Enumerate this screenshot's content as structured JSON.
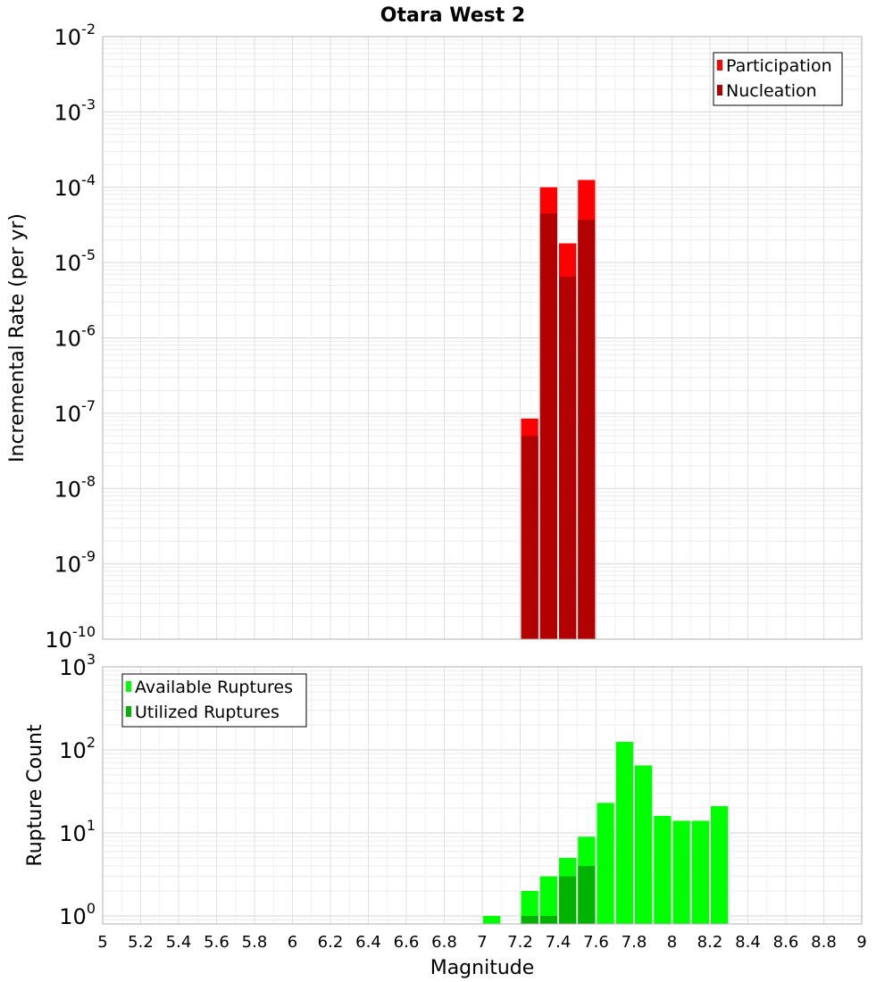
{
  "title": "Otara West 2",
  "xlabel": "Magnitude",
  "chart_data": [
    {
      "type": "bar",
      "ylabel": "Incremental Rate (per yr)",
      "yscale": "log",
      "ylim": [
        1e-10,
        0.01
      ],
      "y_tick_exponents": [
        -10,
        -9,
        -8,
        -7,
        -6,
        -5,
        -4,
        -3,
        -2
      ],
      "xlim": [
        5,
        9
      ],
      "grid": true,
      "legend": "top-right",
      "bar_width": 0.1,
      "series": [
        {
          "name": "Participation",
          "color": "#ff0000",
          "points": [
            {
              "x": 7.25,
              "y": 8.5e-08
            },
            {
              "x": 7.35,
              "y": 0.0001
            },
            {
              "x": 7.45,
              "y": 1.8e-05
            },
            {
              "x": 7.55,
              "y": 0.000125
            }
          ]
        },
        {
          "name": "Nucleation",
          "color": "#b30000",
          "points": [
            {
              "x": 7.25,
              "y": 5e-08
            },
            {
              "x": 7.35,
              "y": 4.5e-05
            },
            {
              "x": 7.45,
              "y": 6.5e-06
            },
            {
              "x": 7.55,
              "y": 3.7e-05
            }
          ]
        }
      ]
    },
    {
      "type": "bar",
      "ylabel": "Rupture Count",
      "yscale": "log",
      "ylim": [
        0.8,
        1000
      ],
      "y_tick_exponents": [
        0,
        1,
        2,
        3
      ],
      "xlim": [
        5,
        9
      ],
      "x_ticks": [
        "5",
        "5.2",
        "5.4",
        "5.6",
        "5.8",
        "6",
        "6.2",
        "6.4",
        "6.6",
        "6.8",
        "7",
        "7.2",
        "7.4",
        "7.6",
        "7.8",
        "8",
        "8.2",
        "8.4",
        "8.6",
        "8.8",
        "9"
      ],
      "grid": true,
      "legend": "top-left",
      "bar_width": 0.1,
      "series": [
        {
          "name": "Available Ruptures",
          "color": "#00ff00",
          "points": [
            {
              "x": 7.05,
              "y": 1
            },
            {
              "x": 7.25,
              "y": 2
            },
            {
              "x": 7.35,
              "y": 3
            },
            {
              "x": 7.45,
              "y": 5
            },
            {
              "x": 7.55,
              "y": 9
            },
            {
              "x": 7.65,
              "y": 23
            },
            {
              "x": 7.75,
              "y": 125
            },
            {
              "x": 7.85,
              "y": 65
            },
            {
              "x": 7.95,
              "y": 16
            },
            {
              "x": 8.05,
              "y": 14
            },
            {
              "x": 8.15,
              "y": 14
            },
            {
              "x": 8.25,
              "y": 21
            }
          ]
        },
        {
          "name": "Utilized Ruptures",
          "color": "#00b300",
          "points": [
            {
              "x": 7.25,
              "y": 1
            },
            {
              "x": 7.35,
              "y": 1
            },
            {
              "x": 7.45,
              "y": 3
            },
            {
              "x": 7.55,
              "y": 4
            }
          ]
        }
      ]
    }
  ]
}
